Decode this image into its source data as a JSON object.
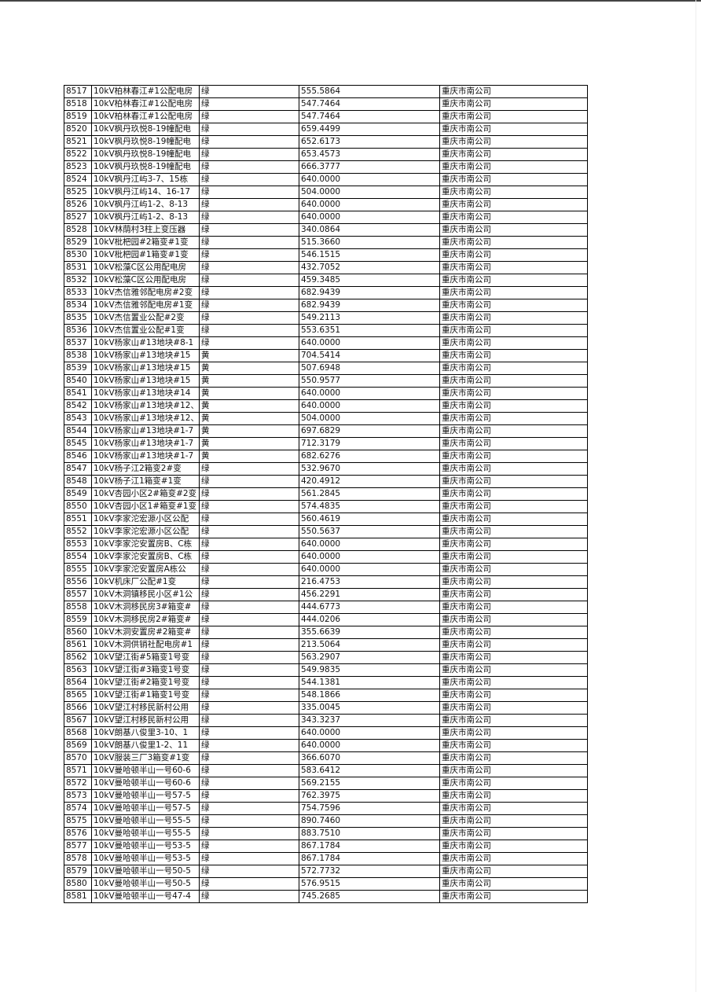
{
  "table": {
    "rows": [
      [
        "8517",
        "10kV柏林春江#1公配电房",
        "绿",
        "555.5864",
        "重庆市南公司"
      ],
      [
        "8518",
        "10kV柏林春江#1公配电房",
        "绿",
        "547.7464",
        "重庆市南公司"
      ],
      [
        "8519",
        "10kV柏林春江#1公配电房",
        "绿",
        "547.7464",
        "重庆市南公司"
      ],
      [
        "8520",
        "10kV枫丹玖悦8-19幢配电",
        "绿",
        "659.4499",
        "重庆市南公司"
      ],
      [
        "8521",
        "10kV枫丹玖悦8-19幢配电",
        "绿",
        "652.6173",
        "重庆市南公司"
      ],
      [
        "8522",
        "10kV枫丹玖悦8-19幢配电",
        "绿",
        "653.4573",
        "重庆市南公司"
      ],
      [
        "8523",
        "10kV枫丹玖悦8-19幢配电",
        "绿",
        "666.3777",
        "重庆市南公司"
      ],
      [
        "8524",
        "10kV枫丹江屿3-7、15栋",
        "绿",
        "640.0000",
        "重庆市南公司"
      ],
      [
        "8525",
        "10kV枫丹江屿14、16-17",
        "绿",
        "504.0000",
        "重庆市南公司"
      ],
      [
        "8526",
        "10kV枫丹江屿1-2、8-13",
        "绿",
        "640.0000",
        "重庆市南公司"
      ],
      [
        "8527",
        "10kV枫丹江屿1-2、8-13",
        "绿",
        "640.0000",
        "重庆市南公司"
      ],
      [
        "8528",
        "10kV林荫村3柱上变压器",
        "绿",
        "340.0864",
        "重庆市南公司"
      ],
      [
        "8529",
        "10kV枇杷园#2箱变#1变",
        "绿",
        "515.3660",
        "重庆市南公司"
      ],
      [
        "8530",
        "10kV枇杷园#1箱变#1变",
        "绿",
        "546.1515",
        "重庆市南公司"
      ],
      [
        "8531",
        "10kV松藻C区公用配电房",
        "绿",
        "432.7052",
        "重庆市南公司"
      ],
      [
        "8532",
        "10kV松藻C区公用配电房",
        "绿",
        "459.3485",
        "重庆市南公司"
      ],
      [
        "8533",
        "10kV杰信雅邻配电房#2变",
        "绿",
        "682.9439",
        "重庆市南公司"
      ],
      [
        "8534",
        "10kV杰信雅邻配电房#1变",
        "绿",
        "682.9439",
        "重庆市南公司"
      ],
      [
        "8535",
        "10kV杰信置业公配#2变",
        "绿",
        "549.2113",
        "重庆市南公司"
      ],
      [
        "8536",
        "10kV杰信置业公配#1变",
        "绿",
        "553.6351",
        "重庆市南公司"
      ],
      [
        "8537",
        "10kV杨家山#13地块#8-1",
        "绿",
        "640.0000",
        "重庆市南公司"
      ],
      [
        "8538",
        "10kV杨家山#13地块#15",
        "黄",
        "704.5414",
        "重庆市南公司"
      ],
      [
        "8539",
        "10kV杨家山#13地块#15",
        "黄",
        "507.6948",
        "重庆市南公司"
      ],
      [
        "8540",
        "10kV杨家山#13地块#15",
        "黄",
        "550.9577",
        "重庆市南公司"
      ],
      [
        "8541",
        "10kV杨家山#13地块#14",
        "黄",
        "640.0000",
        "重庆市南公司"
      ],
      [
        "8542",
        "10kV杨家山#13地块#12、",
        "黄",
        "640.0000",
        "重庆市南公司"
      ],
      [
        "8543",
        "10kV杨家山#13地块#12、",
        "黄",
        "504.0000",
        "重庆市南公司"
      ],
      [
        "8544",
        "10kV杨家山#13地块#1-7",
        "黄",
        "697.6829",
        "重庆市南公司"
      ],
      [
        "8545",
        "10kV杨家山#13地块#1-7",
        "黄",
        "712.3179",
        "重庆市南公司"
      ],
      [
        "8546",
        "10kV杨家山#13地块#1-7",
        "黄",
        "682.6276",
        "重庆市南公司"
      ],
      [
        "8547",
        "10kV杨子江2箱变2#变",
        "绿",
        "532.9670",
        "重庆市南公司"
      ],
      [
        "8548",
        "10kV杨子江1箱变#1变",
        "绿",
        "420.4912",
        "重庆市南公司"
      ],
      [
        "8549",
        "10kV杏园小区2#箱变#2变",
        "绿",
        "561.2845",
        "重庆市南公司"
      ],
      [
        "8550",
        "10kV杏园小区1#箱变#1变",
        "绿",
        "574.4835",
        "重庆市南公司"
      ],
      [
        "8551",
        "10kV李家沱宏源小区公配",
        "绿",
        "560.4619",
        "重庆市南公司"
      ],
      [
        "8552",
        "10kV李家沱宏源小区公配",
        "绿",
        "550.5637",
        "重庆市南公司"
      ],
      [
        "8553",
        "10kV李家沱安置房B、C栋",
        "绿",
        "640.0000",
        "重庆市南公司"
      ],
      [
        "8554",
        "10kV李家沱安置房B、C栋",
        "绿",
        "640.0000",
        "重庆市南公司"
      ],
      [
        "8555",
        "10kV李家沱安置房A栋公",
        "绿",
        "640.0000",
        "重庆市南公司"
      ],
      [
        "8556",
        "10kV机床厂公配#1变",
        "绿",
        "216.4753",
        "重庆市南公司"
      ],
      [
        "8557",
        "10kV木洞镇移民小区#1公",
        "绿",
        "456.2291",
        "重庆市南公司"
      ],
      [
        "8558",
        "10kV木洞移民房3#箱变#",
        "绿",
        "444.6773",
        "重庆市南公司"
      ],
      [
        "8559",
        "10kV木洞移民房2#箱变#",
        "绿",
        "444.0206",
        "重庆市南公司"
      ],
      [
        "8560",
        "10kV木洞安置房#2箱变#",
        "绿",
        "355.6639",
        "重庆市南公司"
      ],
      [
        "8561",
        "10kV木洞供销社配电房#1",
        "绿",
        "213.5064",
        "重庆市南公司"
      ],
      [
        "8562",
        "10kV望江街#5箱变1号变",
        "绿",
        "563.2907",
        "重庆市南公司"
      ],
      [
        "8563",
        "10kV望江街#3箱变1号变",
        "绿",
        "549.9835",
        "重庆市南公司"
      ],
      [
        "8564",
        "10kV望江街#2箱变1号变",
        "绿",
        "544.1381",
        "重庆市南公司"
      ],
      [
        "8565",
        "10kV望江街#1箱变1号变",
        "绿",
        "548.1866",
        "重庆市南公司"
      ],
      [
        "8566",
        "10kV望江村移民新村公用",
        "绿",
        "335.0045",
        "重庆市南公司"
      ],
      [
        "8567",
        "10kV望江村移民新村公用",
        "绿",
        "343.3237",
        "重庆市南公司"
      ],
      [
        "8568",
        "10kV朗基八俊里3-10、1",
        "绿",
        "640.0000",
        "重庆市南公司"
      ],
      [
        "8569",
        "10kV朗基八俊里1-2、11",
        "绿",
        "640.0000",
        "重庆市南公司"
      ],
      [
        "8570",
        "10kV服装三厂3箱变#1变",
        "绿",
        "366.6070",
        "重庆市南公司"
      ],
      [
        "8571",
        "10kV曼哈顿半山一号60-6",
        "绿",
        "583.6412",
        "重庆市南公司"
      ],
      [
        "8572",
        "10kV曼哈顿半山一号60-6",
        "绿",
        "569.2155",
        "重庆市南公司"
      ],
      [
        "8573",
        "10kV曼哈顿半山一号57-5",
        "绿",
        "762.3975",
        "重庆市南公司"
      ],
      [
        "8574",
        "10kV曼哈顿半山一号57-5",
        "绿",
        "754.7596",
        "重庆市南公司"
      ],
      [
        "8575",
        "10kV曼哈顿半山一号55-5",
        "绿",
        "890.7460",
        "重庆市南公司"
      ],
      [
        "8576",
        "10kV曼哈顿半山一号55-5",
        "绿",
        "883.7510",
        "重庆市南公司"
      ],
      [
        "8577",
        "10kV曼哈顿半山一号53-5",
        "绿",
        "867.1784",
        "重庆市南公司"
      ],
      [
        "8578",
        "10kV曼哈顿半山一号53-5",
        "绿",
        "867.1784",
        "重庆市南公司"
      ],
      [
        "8579",
        "10kV曼哈顿半山一号50-5",
        "绿",
        "572.7732",
        "重庆市南公司"
      ],
      [
        "8580",
        "10kV曼哈顿半山一号50-5",
        "绿",
        "576.9515",
        "重庆市南公司"
      ],
      [
        "8581",
        "10kV曼哈顿半山一号47-4",
        "绿",
        "745.2685",
        "重庆市南公司"
      ]
    ]
  }
}
